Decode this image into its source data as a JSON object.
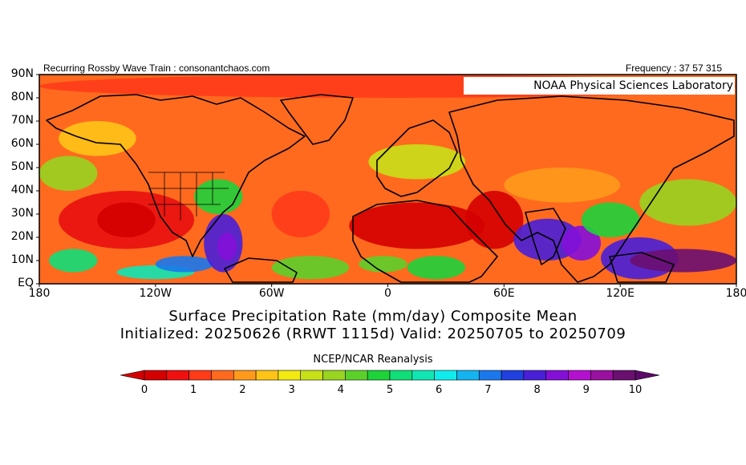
{
  "header": {
    "left_text": "Recurring Rossby Wave Train : consonantchaos.com",
    "right_text": "Frequency : 37 57 315"
  },
  "lab_label": "NOAA Physical Sciences Laboratory",
  "lat_labels": [
    "90N",
    "80N",
    "70N",
    "60N",
    "50N",
    "40N",
    "30N",
    "20N",
    "10N",
    "EQ"
  ],
  "lon_labels": [
    "180",
    "120W",
    "60W",
    "0",
    "60E",
    "120E",
    "180"
  ],
  "title": {
    "line1": "Surface Precipitation Rate (mm/day) Composite Mean",
    "line2": "Initialized: 20250626 (RRWT 1115d) Valid: 20250705 to 20250709"
  },
  "source": "NCEP/NCAR Reanalysis",
  "colorbar": {
    "labels": [
      "0",
      "1",
      "2",
      "3",
      "4",
      "5",
      "6",
      "7",
      "8",
      "9",
      "10"
    ],
    "colors": [
      "#d40000",
      "#f01010",
      "#ff3b1a",
      "#ff6a1e",
      "#ff9a1a",
      "#ffc416",
      "#f2ea10",
      "#c8e018",
      "#98d420",
      "#5cd02a",
      "#1ed23a",
      "#10de78",
      "#10e6b4",
      "#10ecec",
      "#14b4f0",
      "#1a78ec",
      "#2040e0",
      "#4820d8",
      "#8410d8",
      "#b410d0",
      "#9a10a0",
      "#6a1070"
    ],
    "low_color": "#d40000",
    "high_color": "#5a0a68"
  },
  "map": {
    "background_color": "#ff6a1e",
    "lon_range": [
      -180,
      180
    ],
    "lat_range": [
      0,
      90
    ],
    "regions": [
      {
        "lon": [
          -180,
          180
        ],
        "lat": [
          80,
          90
        ],
        "color": "#ff3b1a"
      },
      {
        "lon": [
          -170,
          -100
        ],
        "lat": [
          15,
          40
        ],
        "color": "#e81010"
      },
      {
        "lon": [
          -150,
          -120
        ],
        "lat": [
          20,
          35
        ],
        "color": "#d40000"
      },
      {
        "lon": [
          -180,
          -150
        ],
        "lat": [
          40,
          55
        ],
        "color": "#98d420"
      },
      {
        "lon": [
          -175,
          -150
        ],
        "lat": [
          5,
          15
        ],
        "color": "#10de78"
      },
      {
        "lon": [
          -140,
          -100
        ],
        "lat": [
          2,
          8
        ],
        "color": "#10e6b4"
      },
      {
        "lon": [
          -120,
          -90
        ],
        "lat": [
          5,
          12
        ],
        "color": "#1a78ec"
      },
      {
        "lon": [
          -95,
          -75
        ],
        "lat": [
          5,
          30
        ],
        "color": "#4820d8"
      },
      {
        "lon": [
          -88,
          -78
        ],
        "lat": [
          10,
          22
        ],
        "color": "#8410d8"
      },
      {
        "lon": [
          -100,
          -75
        ],
        "lat": [
          30,
          45
        ],
        "color": "#1ed23a"
      },
      {
        "lon": [
          -60,
          -30
        ],
        "lat": [
          20,
          40
        ],
        "color": "#ff3b1a"
      },
      {
        "lon": [
          -60,
          -20
        ],
        "lat": [
          2,
          12
        ],
        "color": "#5cd02a"
      },
      {
        "lon": [
          -20,
          50
        ],
        "lat": [
          15,
          35
        ],
        "color": "#d40000"
      },
      {
        "lon": [
          40,
          70
        ],
        "lat": [
          15,
          40
        ],
        "color": "#d40000"
      },
      {
        "lon": [
          10,
          40
        ],
        "lat": [
          2,
          12
        ],
        "color": "#1ed23a"
      },
      {
        "lon": [
          -15,
          10
        ],
        "lat": [
          5,
          12
        ],
        "color": "#5cd02a"
      },
      {
        "lon": [
          65,
          100
        ],
        "lat": [
          10,
          28
        ],
        "color": "#4820d8"
      },
      {
        "lon": [
          90,
          110
        ],
        "lat": [
          10,
          25
        ],
        "color": "#8410d8"
      },
      {
        "lon": [
          110,
          150
        ],
        "lat": [
          2,
          20
        ],
        "color": "#4820d8"
      },
      {
        "lon": [
          125,
          180
        ],
        "lat": [
          5,
          15
        ],
        "color": "#6a1070"
      },
      {
        "lon": [
          100,
          130
        ],
        "lat": [
          20,
          35
        ],
        "color": "#1ed23a"
      },
      {
        "lon": [
          130,
          180
        ],
        "lat": [
          25,
          45
        ],
        "color": "#98d420"
      },
      {
        "lon": [
          -10,
          40
        ],
        "lat": [
          45,
          60
        ],
        "color": "#c8e018"
      },
      {
        "lon": [
          60,
          120
        ],
        "lat": [
          35,
          50
        ],
        "color": "#ff9a1a"
      },
      {
        "lon": [
          -170,
          -130
        ],
        "lat": [
          55,
          70
        ],
        "color": "#ffc416"
      }
    ]
  }
}
